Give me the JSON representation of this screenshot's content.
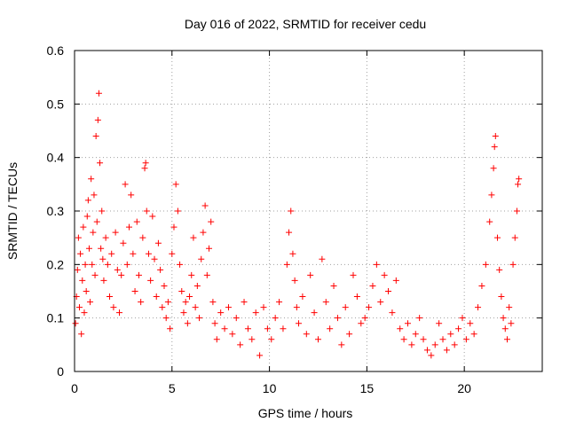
{
  "chart_data": {
    "type": "scatter",
    "title": "Day 016 of 2022, SRMTID for receiver cedu",
    "xlabel": "GPS time / hours",
    "ylabel": "SRMTID / TECUs",
    "xlim": [
      0,
      24
    ],
    "ylim": [
      0,
      0.6
    ],
    "xticks": [
      0,
      5,
      10,
      15,
      20
    ],
    "xtick_labels": [
      "0",
      "5",
      "10",
      "15",
      "20"
    ],
    "yticks": [
      0,
      0.1,
      0.2,
      0.3,
      0.4,
      0.5,
      0.6
    ],
    "ytick_labels": [
      "0",
      "0.1",
      "0.2",
      "0.3",
      "0.4",
      "0.5",
      "0.6"
    ],
    "grid": true,
    "marker": "+",
    "color": "#ff0000",
    "series": [
      {
        "name": "SRMTID",
        "points": [
          [
            0.05,
            0.09
          ],
          [
            0.1,
            0.14
          ],
          [
            0.15,
            0.19
          ],
          [
            0.2,
            0.25
          ],
          [
            0.25,
            0.12
          ],
          [
            0.3,
            0.22
          ],
          [
            0.35,
            0.07
          ],
          [
            0.4,
            0.17
          ],
          [
            0.45,
            0.27
          ],
          [
            0.5,
            0.11
          ],
          [
            0.55,
            0.2
          ],
          [
            0.6,
            0.15
          ],
          [
            0.65,
            0.29
          ],
          [
            0.7,
            0.32
          ],
          [
            0.75,
            0.23
          ],
          [
            0.8,
            0.13
          ],
          [
            0.85,
            0.36
          ],
          [
            0.9,
            0.2
          ],
          [
            0.95,
            0.26
          ],
          [
            1.0,
            0.33
          ],
          [
            1.05,
            0.18
          ],
          [
            1.1,
            0.44
          ],
          [
            1.15,
            0.28
          ],
          [
            1.2,
            0.47
          ],
          [
            1.25,
            0.52
          ],
          [
            1.3,
            0.39
          ],
          [
            1.35,
            0.23
          ],
          [
            1.4,
            0.3
          ],
          [
            1.45,
            0.21
          ],
          [
            1.5,
            0.17
          ],
          [
            1.6,
            0.25
          ],
          [
            1.7,
            0.2
          ],
          [
            1.8,
            0.14
          ],
          [
            1.9,
            0.22
          ],
          [
            2.0,
            0.12
          ],
          [
            2.1,
            0.26
          ],
          [
            2.2,
            0.19
          ],
          [
            2.3,
            0.11
          ],
          [
            2.4,
            0.18
          ],
          [
            2.5,
            0.24
          ],
          [
            2.6,
            0.35
          ],
          [
            2.7,
            0.2
          ],
          [
            2.8,
            0.27
          ],
          [
            2.9,
            0.33
          ],
          [
            3.0,
            0.22
          ],
          [
            3.1,
            0.15
          ],
          [
            3.2,
            0.28
          ],
          [
            3.3,
            0.18
          ],
          [
            3.4,
            0.13
          ],
          [
            3.5,
            0.25
          ],
          [
            3.6,
            0.38
          ],
          [
            3.65,
            0.39
          ],
          [
            3.7,
            0.3
          ],
          [
            3.8,
            0.22
          ],
          [
            3.9,
            0.17
          ],
          [
            4.0,
            0.29
          ],
          [
            4.1,
            0.21
          ],
          [
            4.2,
            0.14
          ],
          [
            4.3,
            0.24
          ],
          [
            4.4,
            0.19
          ],
          [
            4.5,
            0.12
          ],
          [
            4.6,
            0.16
          ],
          [
            4.7,
            0.1
          ],
          [
            4.8,
            0.13
          ],
          [
            4.9,
            0.08
          ],
          [
            5.0,
            0.22
          ],
          [
            5.1,
            0.27
          ],
          [
            5.2,
            0.35
          ],
          [
            5.3,
            0.3
          ],
          [
            5.4,
            0.2
          ],
          [
            5.5,
            0.15
          ],
          [
            5.6,
            0.11
          ],
          [
            5.7,
            0.13
          ],
          [
            5.8,
            0.09
          ],
          [
            5.9,
            0.14
          ],
          [
            6.0,
            0.18
          ],
          [
            6.1,
            0.25
          ],
          [
            6.2,
            0.12
          ],
          [
            6.3,
            0.16
          ],
          [
            6.4,
            0.1
          ],
          [
            6.5,
            0.21
          ],
          [
            6.6,
            0.26
          ],
          [
            6.7,
            0.31
          ],
          [
            6.8,
            0.18
          ],
          [
            6.9,
            0.23
          ],
          [
            7.0,
            0.28
          ],
          [
            7.1,
            0.13
          ],
          [
            7.2,
            0.09
          ],
          [
            7.3,
            0.06
          ],
          [
            7.5,
            0.11
          ],
          [
            7.7,
            0.08
          ],
          [
            7.9,
            0.12
          ],
          [
            8.1,
            0.07
          ],
          [
            8.3,
            0.1
          ],
          [
            8.5,
            0.05
          ],
          [
            8.7,
            0.13
          ],
          [
            8.9,
            0.08
          ],
          [
            9.1,
            0.06
          ],
          [
            9.3,
            0.11
          ],
          [
            9.5,
            0.03
          ],
          [
            9.7,
            0.12
          ],
          [
            9.9,
            0.08
          ],
          [
            10.1,
            0.06
          ],
          [
            10.3,
            0.1
          ],
          [
            10.5,
            0.13
          ],
          [
            10.7,
            0.08
          ],
          [
            10.9,
            0.2
          ],
          [
            11.0,
            0.26
          ],
          [
            11.1,
            0.3
          ],
          [
            11.2,
            0.22
          ],
          [
            11.3,
            0.17
          ],
          [
            11.4,
            0.12
          ],
          [
            11.5,
            0.09
          ],
          [
            11.7,
            0.14
          ],
          [
            11.9,
            0.07
          ],
          [
            12.1,
            0.18
          ],
          [
            12.3,
            0.11
          ],
          [
            12.5,
            0.06
          ],
          [
            12.7,
            0.21
          ],
          [
            12.9,
            0.13
          ],
          [
            13.1,
            0.08
          ],
          [
            13.3,
            0.16
          ],
          [
            13.5,
            0.1
          ],
          [
            13.7,
            0.05
          ],
          [
            13.9,
            0.12
          ],
          [
            14.1,
            0.07
          ],
          [
            14.3,
            0.18
          ],
          [
            14.5,
            0.14
          ],
          [
            14.7,
            0.09
          ],
          [
            14.9,
            0.1
          ],
          [
            15.1,
            0.12
          ],
          [
            15.3,
            0.16
          ],
          [
            15.5,
            0.2
          ],
          [
            15.7,
            0.13
          ],
          [
            15.9,
            0.18
          ],
          [
            16.1,
            0.15
          ],
          [
            16.3,
            0.11
          ],
          [
            16.5,
            0.17
          ],
          [
            16.7,
            0.08
          ],
          [
            16.9,
            0.06
          ],
          [
            17.1,
            0.09
          ],
          [
            17.3,
            0.05
          ],
          [
            17.5,
            0.07
          ],
          [
            17.7,
            0.1
          ],
          [
            17.9,
            0.06
          ],
          [
            18.1,
            0.04
          ],
          [
            18.3,
            0.03
          ],
          [
            18.5,
            0.05
          ],
          [
            18.7,
            0.09
          ],
          [
            18.9,
            0.06
          ],
          [
            19.1,
            0.04
          ],
          [
            19.3,
            0.07
          ],
          [
            19.5,
            0.05
          ],
          [
            19.7,
            0.08
          ],
          [
            19.9,
            0.1
          ],
          [
            20.1,
            0.06
          ],
          [
            20.3,
            0.09
          ],
          [
            20.5,
            0.07
          ],
          [
            20.7,
            0.12
          ],
          [
            20.9,
            0.16
          ],
          [
            21.1,
            0.2
          ],
          [
            21.3,
            0.28
          ],
          [
            21.4,
            0.33
          ],
          [
            21.5,
            0.38
          ],
          [
            21.55,
            0.42
          ],
          [
            21.6,
            0.44
          ],
          [
            21.7,
            0.25
          ],
          [
            21.8,
            0.19
          ],
          [
            21.9,
            0.14
          ],
          [
            22.0,
            0.1
          ],
          [
            22.1,
            0.08
          ],
          [
            22.2,
            0.06
          ],
          [
            22.3,
            0.12
          ],
          [
            22.4,
            0.09
          ],
          [
            22.5,
            0.2
          ],
          [
            22.6,
            0.25
          ],
          [
            22.7,
            0.3
          ],
          [
            22.75,
            0.35
          ],
          [
            22.8,
            0.36
          ]
        ]
      }
    ]
  }
}
